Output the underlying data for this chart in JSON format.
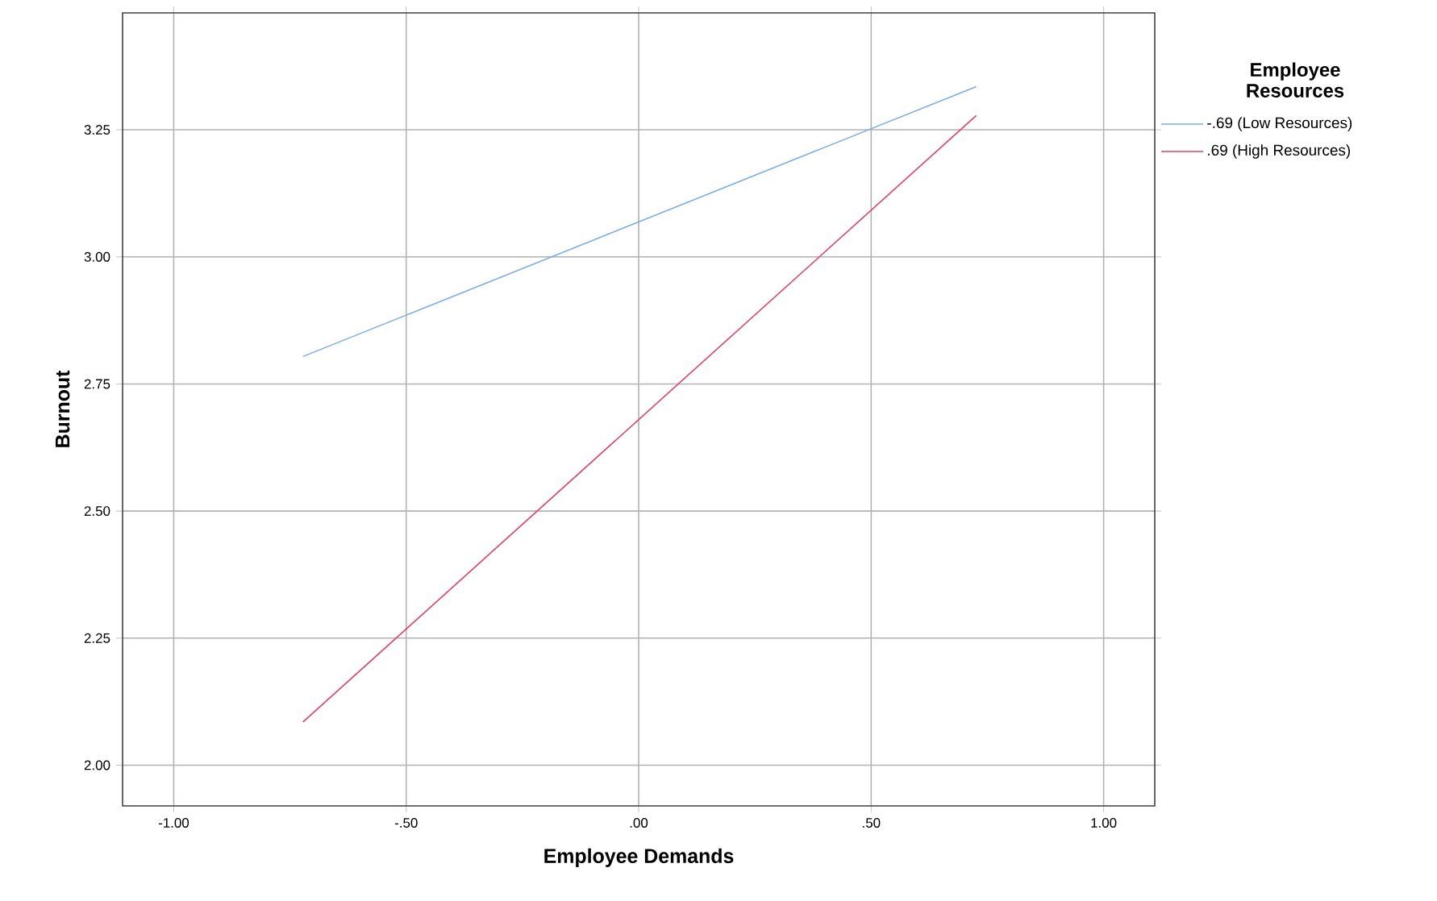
{
  "chart_data": {
    "type": "line",
    "xlabel": "Employee Demands",
    "ylabel": "Burnout",
    "legend_title": "Employee Resources",
    "x": [
      -0.722,
      0.726
    ],
    "series": [
      {
        "name": "-.69 (Low Resources)",
        "color": "#7aaee8",
        "values": [
          2.804,
          3.335
        ]
      },
      {
        "name": ".69 (High Resources)",
        "color": "#e0406a",
        "values": [
          2.085,
          3.278
        ]
      }
    ],
    "xlim": [
      -1.11,
      1.11
    ],
    "ylim": [
      1.92,
      3.48
    ],
    "xticks": [
      {
        "value": -1,
        "label": "-1.00"
      },
      {
        "value": -0.5,
        "label": "-.50"
      },
      {
        "value": 0,
        "label": ".00"
      },
      {
        "value": 0.5,
        "label": ".50"
      },
      {
        "value": 1,
        "label": "1.00"
      }
    ],
    "yticks": [
      {
        "value": 2,
        "label": "2.00"
      },
      {
        "value": 2.25,
        "label": "2.25"
      },
      {
        "value": 2.5,
        "label": "2.50"
      },
      {
        "value": 2.75,
        "label": "2.75"
      },
      {
        "value": 3,
        "label": "3.00"
      },
      {
        "value": 3.25,
        "label": "3.25"
      }
    ],
    "grid": true,
    "legend": "top right",
    "marker": "none",
    "line_style": "solid"
  }
}
